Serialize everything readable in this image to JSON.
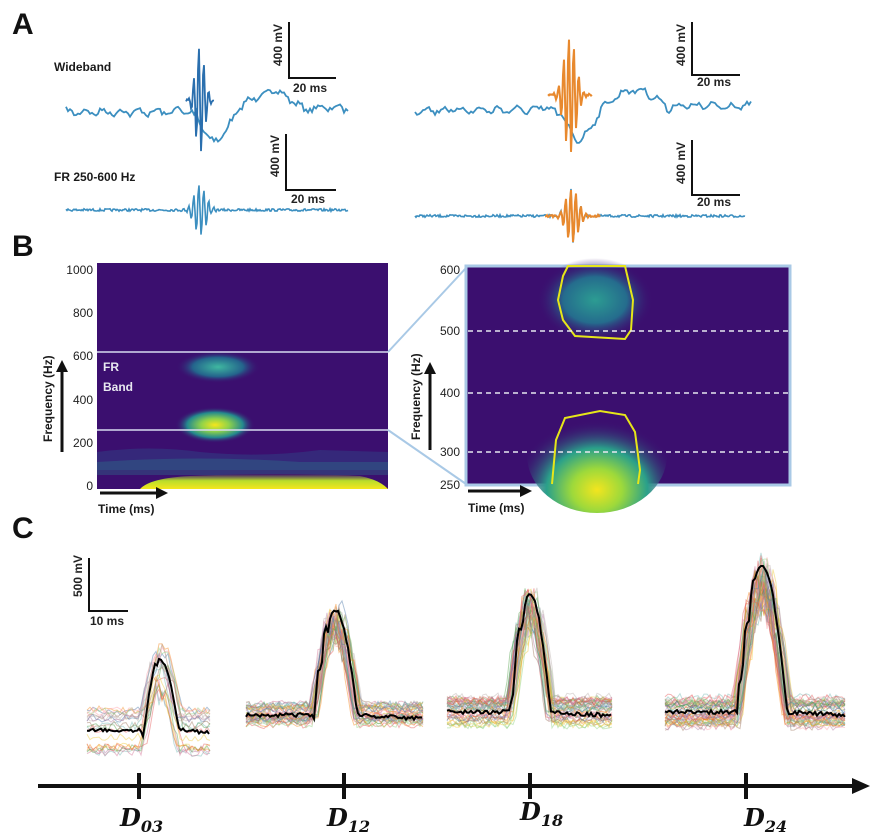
{
  "panels": {
    "a": "A",
    "b": "B",
    "c": "C"
  },
  "panel_a": {
    "wideband_label": "Wideband",
    "fr_label": "FR 250-600 Hz",
    "scale_amplitude": "400 mV",
    "scale_time": "20 ms",
    "trace_color": "#3c8fc0",
    "highlight_color": "#e8892e",
    "ripple_color_left": "#2a6fae"
  },
  "panel_b": {
    "left_y_ticks": [
      "1000",
      "800",
      "600",
      "400",
      "200",
      "0"
    ],
    "right_y_ticks": [
      "600",
      "500",
      "400",
      "300",
      "250"
    ],
    "ylabel": "Frequency (Hz)",
    "xlabel": "Time (ms)",
    "band_label_line1": "FR",
    "band_label_line2": "Band",
    "background_color": "#3b0f6f",
    "contour_color": "#e6e619"
  },
  "panel_c": {
    "scale_amplitude": "500 mV",
    "scale_time": "10 ms",
    "days": [
      {
        "label": "D",
        "sub": "03"
      },
      {
        "label": "D",
        "sub": "12"
      },
      {
        "label": "D",
        "sub": "18"
      },
      {
        "label": "D",
        "sub": "24"
      }
    ],
    "mean_trace_color": "#000000"
  }
}
